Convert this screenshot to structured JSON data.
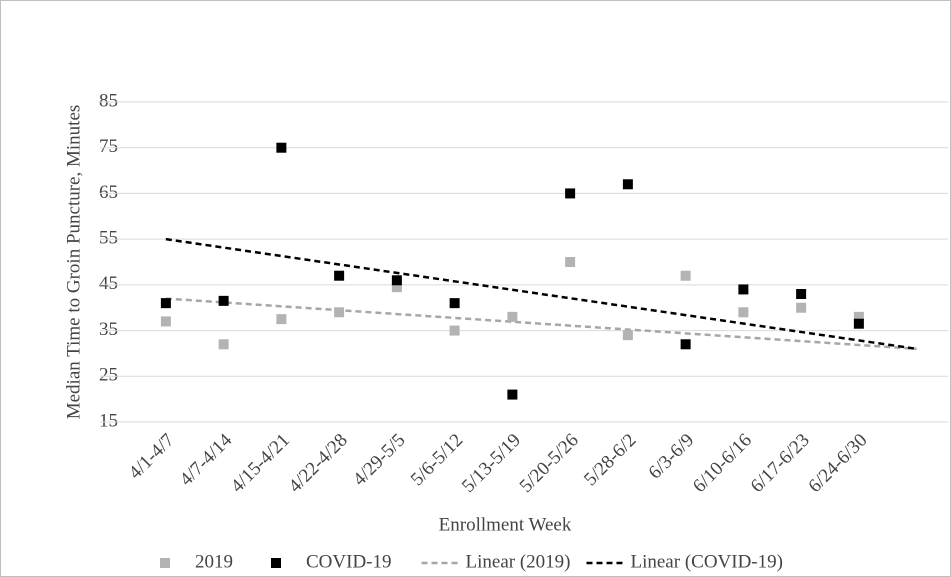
{
  "chart_data": {
    "type": "scatter",
    "x_label": "Enrollment Week",
    "y_label": "Median Time to Groin Puncture, Minutes",
    "categories": [
      "4/1-4/7",
      "4/7-4/14",
      "4/15-4/21",
      "4/22-4/28",
      "4/29-5/5",
      "5/6-5/12",
      "5/13-5/19",
      "5/20-5/26",
      "5/28-6/2",
      "6/3-6/9",
      "6/10-6/16",
      "6/17-6/23",
      "6/24-6/30"
    ],
    "series": [
      {
        "name": "2019",
        "color": "#b3b3b3",
        "values": [
          37,
          32,
          37.5,
          39,
          44.5,
          35,
          38,
          50,
          34,
          47,
          39,
          40,
          38
        ]
      },
      {
        "name": "COVID-19",
        "color": "#000000",
        "values": [
          41,
          41.5,
          75,
          47,
          46,
          41,
          21,
          65,
          67,
          32,
          44,
          43,
          36.5
        ]
      }
    ],
    "trendlines": [
      {
        "name": "Linear (2019)",
        "color": "#a6a6a6",
        "x": [
          1,
          14
        ],
        "values": [
          42,
          31
        ]
      },
      {
        "name": "Linear (COVID-19)",
        "color": "#000000",
        "x": [
          1,
          14
        ],
        "values": [
          55,
          31
        ]
      }
    ],
    "ylim": [
      15,
      85
    ],
    "yticks": [
      15,
      25,
      35,
      45,
      55,
      65,
      75,
      85
    ],
    "grid": true
  }
}
